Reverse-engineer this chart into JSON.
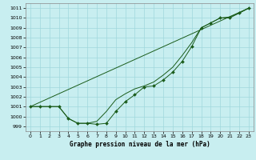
{
  "title": "Graphe pression niveau de la mer (hPa)",
  "bg_color": "#c8eef0",
  "grid_color": "#a0d8dc",
  "line_color": "#1a5c1a",
  "xlim": [
    -0.5,
    23.5
  ],
  "ylim": [
    998.5,
    1011.5
  ],
  "yticks": [
    999,
    1000,
    1001,
    1002,
    1003,
    1004,
    1005,
    1006,
    1007,
    1008,
    1009,
    1010,
    1011
  ],
  "xticks": [
    0,
    1,
    2,
    3,
    4,
    5,
    6,
    7,
    8,
    9,
    10,
    11,
    12,
    13,
    14,
    15,
    16,
    17,
    18,
    19,
    20,
    21,
    22,
    23
  ],
  "series1": {
    "x": [
      0,
      1,
      2,
      3,
      4,
      5,
      6,
      7,
      8,
      9,
      10,
      11,
      12,
      13,
      14,
      15,
      16,
      17,
      18,
      19,
      20,
      21,
      22,
      23
    ],
    "y": [
      1001.0,
      1001.0,
      1001.0,
      1001.0,
      999.8,
      999.3,
      999.3,
      999.2,
      999.3,
      1000.5,
      1001.5,
      1002.2,
      1003.0,
      1003.1,
      1003.7,
      1004.5,
      1005.6,
      1007.1,
      1009.0,
      1009.5,
      1010.0,
      1010.0,
      1010.5,
      1011.0
    ]
  },
  "series2": {
    "x": [
      0,
      1,
      2,
      3,
      4,
      5,
      6,
      7,
      8,
      9,
      10,
      11,
      12,
      13,
      14,
      15,
      16,
      17,
      18,
      19,
      20,
      21,
      22,
      23
    ],
    "y": [
      1001.0,
      1001.0,
      1001.0,
      1001.0,
      999.8,
      999.3,
      999.3,
      999.5,
      1000.5,
      1001.7,
      1002.3,
      1002.8,
      1003.1,
      1003.5,
      1004.2,
      1005.0,
      1006.2,
      1007.5,
      1009.0,
      1009.5,
      1010.0,
      1010.1,
      1010.5,
      1011.0
    ]
  },
  "series3": {
    "x": [
      0,
      23
    ],
    "y": [
      1001.0,
      1011.0
    ]
  }
}
